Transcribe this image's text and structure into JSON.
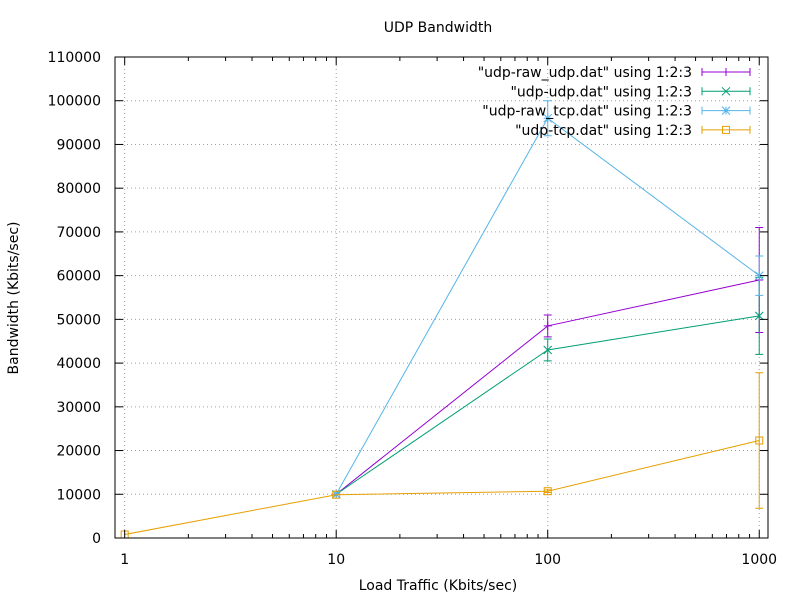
{
  "chart_data": {
    "type": "line",
    "title": "UDP Bandwidth",
    "xlabel": "Load Traffic (Kbits/sec)",
    "ylabel": "Bandwidth (Kbits/sec)",
    "xscale": "log",
    "xlim": [
      0.9,
      1100
    ],
    "ylim": [
      0,
      110000
    ],
    "x_ticks": [
      1,
      10,
      100,
      1000
    ],
    "x_tick_labels": [
      "1",
      "10",
      "100",
      "1000"
    ],
    "y_ticks": [
      0,
      10000,
      20000,
      30000,
      40000,
      50000,
      60000,
      70000,
      80000,
      90000,
      100000,
      110000
    ],
    "y_tick_labels": [
      "0",
      "10000",
      "20000",
      "30000",
      "40000",
      "50000",
      "60000",
      "70000",
      "80000",
      "90000",
      "100000",
      "110000"
    ],
    "grid": true,
    "legend_position": "top-right",
    "series": [
      {
        "name": "\"udp-raw_udp.dat\" using 1:2:3",
        "color": "#9400d3",
        "marker": "plus",
        "x": [
          10,
          100,
          1000
        ],
        "y": [
          10000,
          48500,
          59000
        ],
        "err": [
          0,
          2500,
          12000
        ]
      },
      {
        "name": "\"udp-udp.dat\" using 1:2:3",
        "color": "#009e73",
        "marker": "cross",
        "x": [
          10,
          100,
          1000
        ],
        "y": [
          10000,
          43000,
          50800
        ],
        "err": [
          0,
          2500,
          8800
        ]
      },
      {
        "name": "\"udp-raw_tcp.dat\" using 1:2:3",
        "color": "#56b4e9",
        "marker": "star",
        "x": [
          10,
          100,
          1000
        ],
        "y": [
          10000,
          96000,
          60000
        ],
        "err": [
          0,
          4000,
          4500
        ]
      },
      {
        "name": "\"udp-tcp.dat\" using 1:2:3",
        "color": "#e69f00",
        "marker": "square",
        "x": [
          1,
          10,
          100,
          1000
        ],
        "y": [
          800,
          9900,
          10700,
          22300
        ],
        "err": [
          0,
          0,
          300,
          15500
        ]
      }
    ]
  }
}
